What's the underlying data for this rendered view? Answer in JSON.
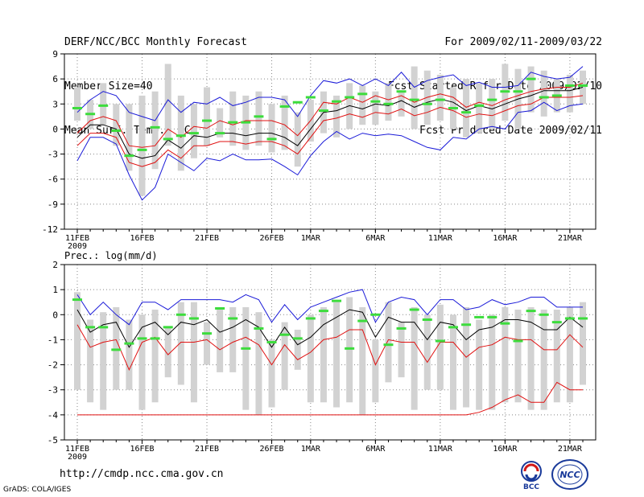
{
  "header": {
    "title": "DERF/NCC/BCC Monthly Forecast",
    "member_size": "Member Size=40",
    "variable": "Mean Surf. Temp.: °C",
    "period": "For 2009/02/11-2009/03/22",
    "fcst_start": "Fcst Started Refer Date 2009/02/10",
    "fcst_produced": "Fcst Produced Date 2009/02/11"
  },
  "footer": {
    "url": "http://cmdp.ncc.cma.gov.cn",
    "credit": "GrADS: COLA/IGES",
    "logo_bcc": "BCC",
    "logo_ncc": "NCC"
  },
  "colors": {
    "blue": "#1a1ad8",
    "red": "#e01010",
    "black": "#000000",
    "green": "#3cdc3c",
    "box": "#d2d2d2",
    "grid": "#888888"
  },
  "chart_data": [
    {
      "type": "line",
      "name": "temperature",
      "title": "",
      "ylabel": "Mean Surf. Temp.: °C",
      "ylim": [
        -12,
        9
      ],
      "yticks": [
        9,
        6,
        3,
        0,
        -3,
        -6,
        -9,
        -12
      ],
      "x_tick_labels": [
        "11FEB",
        "16FEB",
        "21FEB",
        "26FEB",
        "1MAR",
        "6MAR",
        "11MAR",
        "16MAR",
        "21MAR"
      ],
      "x_tick_days": [
        1,
        6,
        11,
        16,
        19,
        24,
        29,
        34,
        39
      ],
      "year_label": "2009",
      "days": 40,
      "series": [
        {
          "name": "max",
          "color": "blue",
          "values": [
            -3.8,
            -1,
            -1,
            -1.8,
            -5.5,
            -8.5,
            -7,
            -3,
            -4,
            -5,
            -3.5,
            -3.8,
            -3,
            -3.7,
            -3.7,
            -3.6,
            -4.5,
            -5.5,
            -3.2,
            -1.5,
            -0.3,
            -1.2,
            -0.5,
            -0.8,
            -0.6,
            -0.8,
            -1.5,
            -2.2,
            -2.5,
            -1,
            -1.2,
            0,
            0.3,
            0,
            2,
            2.2,
            3.2,
            2.2,
            2.8,
            3
          ]
        },
        {
          "name": "max_upper",
          "color": "blue",
          "values": [
            2,
            3.5,
            4.5,
            4,
            2,
            1.5,
            1,
            3.5,
            2,
            3.2,
            3,
            3.8,
            2.8,
            3.2,
            3.8,
            3.8,
            3.5,
            1.5,
            4,
            5.8,
            5.5,
            6,
            5.2,
            6,
            5.2,
            6.8,
            5,
            5.8,
            6.2,
            6.5,
            5.2,
            5.6,
            5,
            5,
            5.2,
            6.8,
            6.3,
            6,
            6.2,
            7.5
          ]
        },
        {
          "name": "red_upper",
          "color": "red",
          "values": [
            -0.5,
            1,
            1.5,
            1,
            -2,
            -2.2,
            -2,
            0,
            -1,
            0.3,
            0.1,
            1,
            0.5,
            1,
            1,
            1,
            0.5,
            -0.8,
            1,
            3.2,
            3,
            3.8,
            3.2,
            4,
            3.5,
            4,
            3.2,
            3.8,
            4.2,
            3.8,
            2.6,
            3.2,
            2.8,
            3.5,
            4,
            4.5,
            4.8,
            5,
            5,
            5.5
          ]
        },
        {
          "name": "mean",
          "color": "black",
          "values": [
            -1,
            0.5,
            0.5,
            0,
            -3,
            -3.5,
            -3.2,
            -1.3,
            -2.3,
            -0.8,
            -1,
            -0.5,
            -0.5,
            -0.8,
            -0.5,
            -0.5,
            -1,
            -2,
            0,
            2,
            2.2,
            2.8,
            2.4,
            3,
            2.8,
            3.4,
            2.6,
            3.2,
            3.6,
            3.2,
            2.2,
            2.8,
            2.4,
            3,
            3.6,
            4,
            4.6,
            4.6,
            4.6,
            5
          ]
        },
        {
          "name": "red_lower",
          "color": "red",
          "values": [
            -2,
            -0.5,
            -0.5,
            -1,
            -4,
            -4.5,
            -4,
            -2.5,
            -3.5,
            -2,
            -2,
            -1.5,
            -1.5,
            -1.8,
            -1.5,
            -1.5,
            -2,
            -3,
            -1,
            1,
            1.3,
            1.8,
            1.4,
            2,
            1.8,
            2.4,
            1.6,
            2,
            2.6,
            2.2,
            1.4,
            1.8,
            1.6,
            2.2,
            2.8,
            3,
            3.8,
            3.8,
            3.8,
            4
          ]
        },
        {
          "name": "box_top",
          "color": "box",
          "values": [
            5,
            3.5,
            5.5,
            3,
            3,
            4,
            4.5,
            7.8,
            4,
            3,
            5,
            2.5,
            4.5,
            4,
            4.5,
            3,
            4,
            2,
            3.5,
            4.5,
            4,
            5.5,
            5.2,
            4.5,
            5.5,
            4.5,
            7.5,
            7,
            6.5,
            5,
            6,
            5.5,
            6,
            7.8,
            7.2,
            7.5,
            7,
            6,
            6.5,
            7
          ]
        },
        {
          "name": "box_bottom",
          "color": "box",
          "values": [
            1,
            0,
            0.5,
            -2,
            -5,
            -8,
            -4.8,
            -2,
            -5,
            -3.5,
            -2,
            -1,
            -2,
            -2.5,
            -2,
            -2.8,
            -2.5,
            -4.5,
            -1.5,
            -0.5,
            -1,
            0,
            0.5,
            0.5,
            1,
            1.5,
            0,
            0.5,
            1,
            0,
            -1,
            -0.5,
            0,
            1,
            0,
            2,
            1.5,
            2,
            2,
            3
          ]
        },
        {
          "name": "observed",
          "color": "green",
          "values": [
            2.5,
            1.8,
            2.8,
            -0.2,
            -3.2,
            -2.5,
            0.2,
            -1.2,
            -0.8,
            -0.5,
            1,
            -0.5,
            0.8,
            0.8,
            1.5,
            -1.2,
            2.7,
            3.2,
            3.8,
            2.2,
            3.3,
            3.8,
            4.2,
            3.3,
            3,
            4.5,
            3.5,
            3,
            3.5,
            2.5,
            2,
            2.8,
            3.5,
            4.5,
            4.5,
            6,
            3.8,
            4,
            5.2,
            5.2
          ]
        }
      ]
    },
    {
      "type": "line",
      "name": "precipitation",
      "title": "",
      "ylabel": "Prec.: log(mm/d)",
      "ylim": [
        -5,
        2
      ],
      "yticks": [
        2,
        1,
        0,
        -1,
        -2,
        -3,
        -4,
        -5
      ],
      "x_tick_labels": [
        "11FEB",
        "16FEB",
        "21FEB",
        "26FEB",
        "1MAR",
        "6MAR",
        "11MAR",
        "16MAR",
        "21MAR"
      ],
      "x_tick_days": [
        1,
        6,
        11,
        16,
        19,
        24,
        29,
        34,
        39
      ],
      "year_label": "2009",
      "days": 40,
      "series": [
        {
          "name": "max",
          "color": "blue",
          "values": [
            0.8,
            0,
            0.5,
            0,
            -0.4,
            0.5,
            0.5,
            0.2,
            0.6,
            0.6,
            0.6,
            0.6,
            0.5,
            0.8,
            0.6,
            -0.3,
            0.4,
            -0.2,
            0.3,
            0.5,
            0.7,
            0.9,
            1,
            -0.3,
            0.5,
            0.7,
            0.6,
            0,
            0.6,
            0.6,
            0.2,
            0.3,
            0.6,
            0.4,
            0.5,
            0.7,
            0.7,
            0.3,
            0.3,
            0.3
          ]
        },
        {
          "name": "mean",
          "color": "black",
          "values": [
            0.2,
            -0.7,
            -0.4,
            -0.3,
            -1.3,
            -0.5,
            -0.3,
            -0.8,
            -0.3,
            -0.4,
            -0.2,
            -0.7,
            -0.5,
            -0.2,
            -0.5,
            -1.3,
            -0.5,
            -1.2,
            -0.9,
            -0.4,
            -0.1,
            0.2,
            0.1,
            -0.9,
            -0.1,
            -0.3,
            -0.3,
            -1,
            -0.3,
            -0.4,
            -1,
            -0.6,
            -0.5,
            -0.2,
            -0.2,
            -0.3,
            -0.6,
            -0.6,
            -0.1,
            -0.5
          ]
        },
        {
          "name": "red",
          "color": "red",
          "values": [
            -0.4,
            -1.3,
            -1.1,
            -1,
            -2.2,
            -1.1,
            -0.9,
            -1.6,
            -1.1,
            -1.1,
            -1,
            -1.4,
            -1.1,
            -0.9,
            -1.2,
            -2,
            -1.2,
            -1.8,
            -1.5,
            -1,
            -0.9,
            -0.6,
            -0.6,
            -2,
            -1,
            -1.1,
            -1.1,
            -1.9,
            -1.1,
            -1.1,
            -1.7,
            -1.3,
            -1.2,
            -0.9,
            -1,
            -1,
            -1.4,
            -1.4,
            -0.8,
            -1.3
          ]
        },
        {
          "name": "min",
          "color": "red",
          "values": [
            -4,
            -4,
            -4,
            -4,
            -4,
            -4,
            -4,
            -4,
            -4,
            -4,
            -4,
            -4,
            -4,
            -4,
            -4,
            -4,
            -4,
            -4,
            -4,
            -4,
            -4,
            -4,
            -4,
            -4,
            -4,
            -4,
            -4,
            -4,
            -4,
            -4,
            -4,
            -3.9,
            -3.7,
            -3.4,
            -3.2,
            -3.5,
            -3.5,
            -2.7,
            -3,
            -3
          ]
        },
        {
          "name": "box_top",
          "color": "box",
          "values": [
            0.9,
            -0.2,
            0.1,
            0.3,
            -0.2,
            0,
            0.2,
            -0.5,
            0.5,
            0.5,
            -0.3,
            0.2,
            0.3,
            0.3,
            0.1,
            -1,
            -0.3,
            -0.6,
            0,
            0.3,
            0.5,
            0.7,
            0.3,
            -1,
            0.5,
            -0.3,
            0.3,
            0,
            0.4,
            0,
            0.3,
            -0.2,
            0,
            0.3,
            0.2,
            0.3,
            0.2,
            0.2,
            0.3,
            0.5
          ]
        },
        {
          "name": "box_bottom",
          "color": "box",
          "values": [
            -3,
            -3.5,
            -3.8,
            -3,
            -3,
            -3.8,
            -3.5,
            -2.5,
            -2.8,
            -3.5,
            -2,
            -2.3,
            -2.3,
            -3.8,
            -4,
            -3.7,
            -3,
            -2.2,
            -3.5,
            -3.5,
            -3.7,
            -3.5,
            -4,
            -3.5,
            -2.7,
            -2.5,
            -3.8,
            -3,
            -3,
            -3.8,
            -3.7,
            -3.8,
            -3.8,
            -3.5,
            -3.5,
            -3.8,
            -3.8,
            -3.5,
            -3.5,
            -2.8
          ]
        },
        {
          "name": "observed",
          "color": "green",
          "values": [
            0.6,
            -0.5,
            -0.5,
            -1.4,
            -1.15,
            -0.95,
            -0.95,
            -0.5,
            0,
            -0.15,
            -0.75,
            0.25,
            -0.15,
            -1.35,
            -0.55,
            -1.1,
            -0.8,
            -0.95,
            -0.15,
            0.15,
            0.55,
            -1.35,
            -0.25,
            0,
            -1.2,
            -0.55,
            0.2,
            -0.2,
            -1.05,
            -0.5,
            -0.4,
            -0.1,
            -0.1,
            -0.35,
            -1.05,
            0.15,
            0,
            -0.3,
            -0.15,
            -0.15
          ]
        }
      ]
    }
  ]
}
